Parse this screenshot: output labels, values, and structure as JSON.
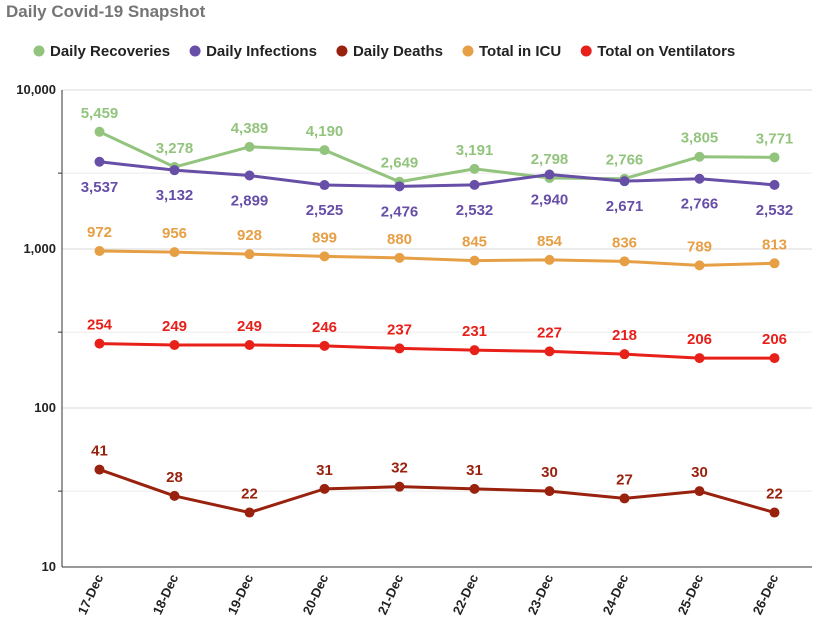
{
  "chart_data": {
    "type": "line",
    "title": "Daily Covid-19 Snapshot",
    "y_scale": "log",
    "ylim": [
      10,
      10000
    ],
    "y_ticks": [
      "10",
      "100",
      "1,000",
      "10,000"
    ],
    "grid": true,
    "legend_position": "top",
    "categories": [
      "17-Dec",
      "18-Dec",
      "19-Dec",
      "20-Dec",
      "21-Dec",
      "22-Dec",
      "23-Dec",
      "24-Dec",
      "25-Dec",
      "26-Dec"
    ],
    "series": [
      {
        "name": "Daily Recoveries",
        "color": "#93c47d",
        "label_pos": "above",
        "values": [
          5459,
          3278,
          4389,
          4190,
          2649,
          3191,
          2798,
          2766,
          3805,
          3771
        ],
        "labels": [
          "5,459",
          "3,278",
          "4,389",
          "4,190",
          "2,649",
          "3,191",
          "2,798",
          "2,766",
          "3,805",
          "3,771"
        ]
      },
      {
        "name": "Daily Infections",
        "color": "#674ea7",
        "label_pos": "below",
        "values": [
          3537,
          3132,
          2899,
          2525,
          2476,
          2532,
          2940,
          2671,
          2766,
          2532
        ],
        "labels": [
          "3,537",
          "3,132",
          "2,899",
          "2,525",
          "2,476",
          "2,532",
          "2,940",
          "2,671",
          "2,766",
          "2,532"
        ]
      },
      {
        "name": "Daily Deaths",
        "color": "#99220e",
        "label_pos": "above",
        "values": [
          41,
          28,
          22,
          31,
          32,
          31,
          30,
          27,
          30,
          22
        ],
        "labels": [
          "41",
          "28",
          "22",
          "31",
          "32",
          "31",
          "30",
          "27",
          "30",
          "22"
        ]
      },
      {
        "name": "Total in ICU",
        "color": "#e69f45",
        "label_pos": "above",
        "values": [
          972,
          956,
          928,
          899,
          880,
          845,
          854,
          836,
          789,
          813
        ],
        "labels": [
          "972",
          "956",
          "928",
          "899",
          "880",
          "845",
          "854",
          "836",
          "789",
          "813"
        ]
      },
      {
        "name": "Total on Ventilators",
        "color": "#e8201a",
        "label_pos": "above",
        "values": [
          254,
          249,
          249,
          246,
          237,
          231,
          227,
          218,
          206,
          206
        ],
        "labels": [
          "254",
          "249",
          "249",
          "246",
          "237",
          "231",
          "227",
          "218",
          "206",
          "206"
        ]
      }
    ]
  }
}
